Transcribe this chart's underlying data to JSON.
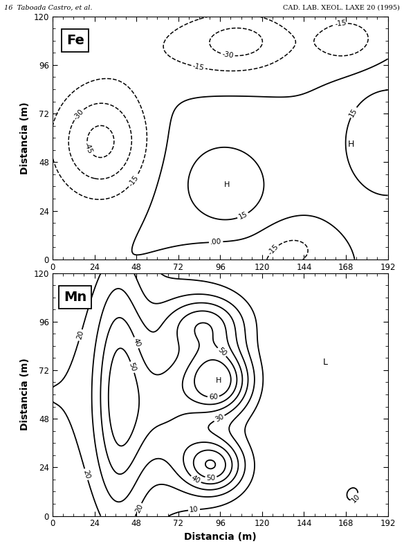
{
  "title_left": "16  Taboada Castro, et al.",
  "title_right": "CAD. LAB. XEOL. LAXE 20 (1995)",
  "x_ticks": [
    0,
    24,
    48,
    72,
    96,
    120,
    144,
    168,
    192
  ],
  "y_ticks": [
    0,
    24,
    48,
    72,
    96,
    120
  ],
  "xlabel": "Distancia (m)",
  "ylabel": "Distancia (m)",
  "fe_label": "Fe",
  "mn_label": "Mn",
  "fe_H_inner": "H",
  "fe_H_right": "H",
  "mn_H_label": "H",
  "mn_L_label": "L",
  "figsize": [
    5.84,
    7.89
  ],
  "dpi": 100
}
